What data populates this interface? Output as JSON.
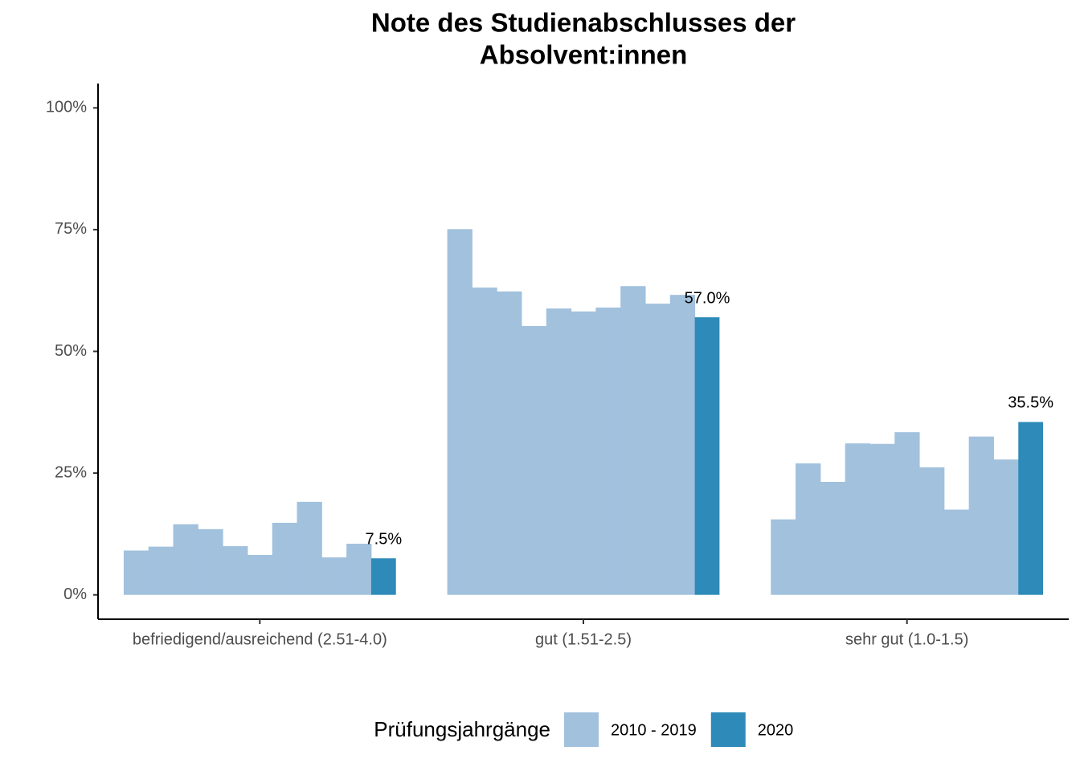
{
  "chart_data": {
    "type": "bar",
    "title": [
      "Note des Studienabschlusses der",
      "Absolvent:innen"
    ],
    "categories": [
      "befriedigend/ausreichend (2.51-4.0)",
      "gut (1.51-2.5)",
      "sehr gut (1.0-1.5)"
    ],
    "legend_title": "Prüfungsjahrgänge",
    "legend_position": "bottom",
    "series": [
      {
        "name": "2010 - 2019",
        "color": "#a1c1dd",
        "values": [
          [
            9.1,
            9.9,
            14.5,
            13.5,
            10.0,
            8.2,
            14.8,
            19.1,
            7.7,
            10.5
          ],
          [
            75.1,
            63.1,
            62.3,
            55.2,
            58.8,
            58.2,
            59.0,
            63.4,
            59.8,
            61.6
          ],
          [
            15.5,
            27.0,
            23.2,
            31.1,
            31.0,
            33.4,
            26.2,
            17.5,
            32.5,
            27.8
          ]
        ]
      },
      {
        "name": "2020",
        "color": "#2e8ab8",
        "values": [
          7.5,
          57.0,
          35.5
        ],
        "value_labels": [
          "7.5%",
          "57.0%",
          "35.5%"
        ]
      }
    ],
    "ylim": [
      -5,
      105
    ],
    "yticks": [
      {
        "value": 0,
        "label": "0%"
      },
      {
        "value": 25,
        "label": "25%"
      },
      {
        "value": 50,
        "label": "50%"
      },
      {
        "value": 75,
        "label": "75%"
      },
      {
        "value": 100,
        "label": "100%"
      }
    ]
  }
}
